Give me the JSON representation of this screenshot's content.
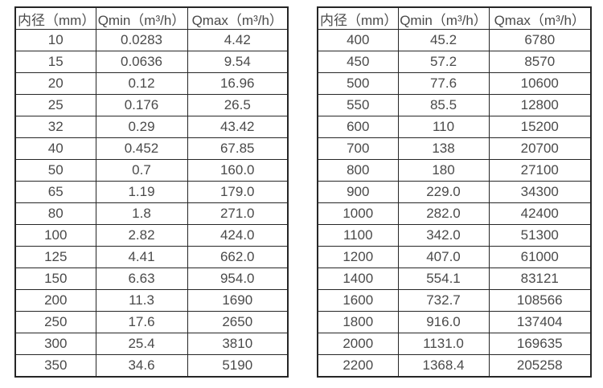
{
  "page": {
    "background": "#ffffff",
    "text_color": "#4a4a4a",
    "border_color": "#262626"
  },
  "tables": [
    {
      "name": "left",
      "headers": [
        "内径（mm）",
        "Qmin（m³/h）",
        "Qmax（m³/h）"
      ],
      "rows": [
        [
          "10",
          "0.0283",
          "4.42"
        ],
        [
          "15",
          "0.0636",
          "9.54"
        ],
        [
          "20",
          "0.12",
          "16.96"
        ],
        [
          "25",
          "0.176",
          "26.5"
        ],
        [
          "32",
          "0.29",
          "43.42"
        ],
        [
          "40",
          "0.452",
          "67.85"
        ],
        [
          "50",
          "0.7",
          "160.0"
        ],
        [
          "65",
          "1.19",
          "179.0"
        ],
        [
          "80",
          "1.8",
          "271.0"
        ],
        [
          "100",
          "2.82",
          "424.0"
        ],
        [
          "125",
          "4.41",
          "662.0"
        ],
        [
          "150",
          "6.63",
          "954.0"
        ],
        [
          "200",
          "11.3",
          "1690"
        ],
        [
          "250",
          "17.6",
          "2650"
        ],
        [
          "300",
          "25.4",
          "3810"
        ],
        [
          "350",
          "34.6",
          "5190"
        ]
      ]
    },
    {
      "name": "right",
      "headers": [
        "内径（mm）",
        "Qmin（m³/h）",
        "Qmax（m³/h）"
      ],
      "rows": [
        [
          "400",
          "45.2",
          "6780"
        ],
        [
          "450",
          "57.2",
          "8570"
        ],
        [
          "500",
          "77.6",
          "10600"
        ],
        [
          "550",
          "85.5",
          "12800"
        ],
        [
          "600",
          "110",
          "15200"
        ],
        [
          "700",
          "138",
          "20700"
        ],
        [
          "800",
          "180",
          "27100"
        ],
        [
          "900",
          "229.0",
          "34300"
        ],
        [
          "1000",
          "282.0",
          "42400"
        ],
        [
          "1100",
          "342.0",
          "51300"
        ],
        [
          "1200",
          "407.0",
          "61000"
        ],
        [
          "1400",
          "554.1",
          "83121"
        ],
        [
          "1600",
          "732.7",
          "108566"
        ],
        [
          "1800",
          "916.0",
          "137404"
        ],
        [
          "2000",
          "1131.0",
          "169635"
        ],
        [
          "2200",
          "1368.4",
          "205258"
        ]
      ]
    }
  ],
  "chart_data": [
    {
      "type": "table",
      "title": "",
      "columns": [
        "内径（mm）",
        "Qmin（m³/h）",
        "Qmax（m³/h）"
      ],
      "rows": [
        [
          "10",
          "0.0283",
          "4.42"
        ],
        [
          "15",
          "0.0636",
          "9.54"
        ],
        [
          "20",
          "0.12",
          "16.96"
        ],
        [
          "25",
          "0.176",
          "26.5"
        ],
        [
          "32",
          "0.29",
          "43.42"
        ],
        [
          "40",
          "0.452",
          "67.85"
        ],
        [
          "50",
          "0.7",
          "160.0"
        ],
        [
          "65",
          "1.19",
          "179.0"
        ],
        [
          "80",
          "1.8",
          "271.0"
        ],
        [
          "100",
          "2.82",
          "424.0"
        ],
        [
          "125",
          "4.41",
          "662.0"
        ],
        [
          "150",
          "6.63",
          "954.0"
        ],
        [
          "200",
          "11.3",
          "1690"
        ],
        [
          "250",
          "17.6",
          "2650"
        ],
        [
          "300",
          "25.4",
          "3810"
        ],
        [
          "350",
          "34.6",
          "5190"
        ]
      ]
    },
    {
      "type": "table",
      "title": "",
      "columns": [
        "内径（mm）",
        "Qmin（m³/h）",
        "Qmax（m³/h）"
      ],
      "rows": [
        [
          "400",
          "45.2",
          "6780"
        ],
        [
          "450",
          "57.2",
          "8570"
        ],
        [
          "500",
          "77.6",
          "10600"
        ],
        [
          "550",
          "85.5",
          "12800"
        ],
        [
          "600",
          "110",
          "15200"
        ],
        [
          "700",
          "138",
          "20700"
        ],
        [
          "800",
          "180",
          "27100"
        ],
        [
          "900",
          "229.0",
          "34300"
        ],
        [
          "1000",
          "282.0",
          "42400"
        ],
        [
          "1100",
          "342.0",
          "51300"
        ],
        [
          "1200",
          "407.0",
          "61000"
        ],
        [
          "1400",
          "554.1",
          "83121"
        ],
        [
          "1600",
          "732.7",
          "108566"
        ],
        [
          "1800",
          "916.0",
          "137404"
        ],
        [
          "2000",
          "1131.0",
          "169635"
        ],
        [
          "2200",
          "1368.4",
          "205258"
        ]
      ]
    }
  ]
}
